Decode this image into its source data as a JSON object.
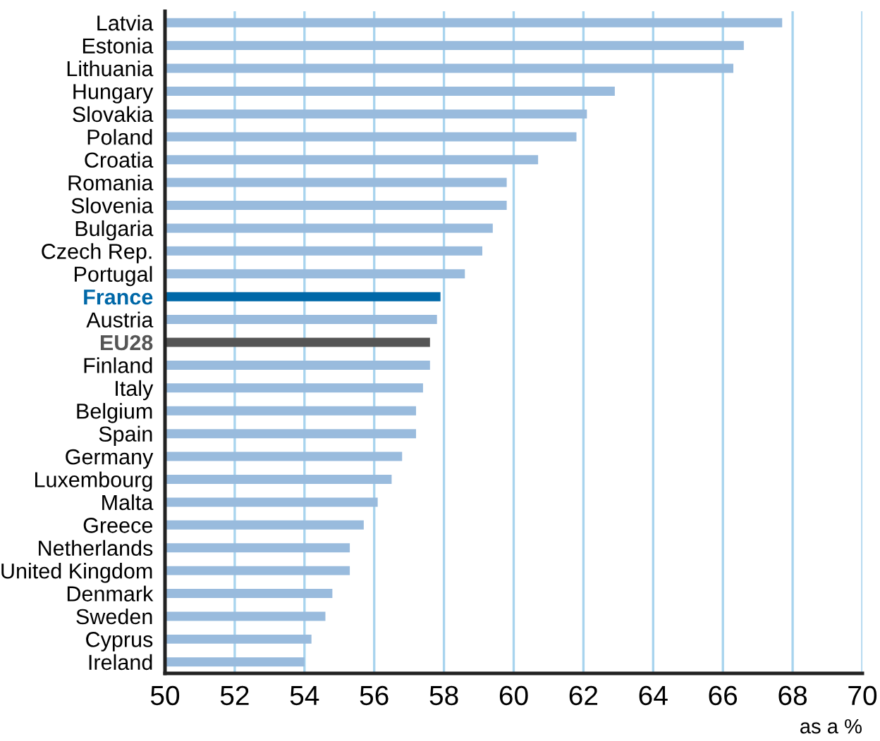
{
  "chart_data": {
    "type": "bar",
    "orientation": "horizontal",
    "xlabel": "as a %",
    "categories": [
      "Latvia",
      "Estonia",
      "Lithuania",
      "Hungary",
      "Slovakia",
      "Poland",
      "Croatia",
      "Romania",
      "Slovenia",
      "Bulgaria",
      "Czech Rep.",
      "Portugal",
      "France",
      "Austria",
      "EU28",
      "Finland",
      "Italy",
      "Belgium",
      "Spain",
      "Germany",
      "Luxembourg",
      "Malta",
      "Greece",
      "Netherlands",
      "United Kingdom",
      "Denmark",
      "Sweden",
      "Cyprus",
      "Ireland"
    ],
    "values": [
      67.7,
      66.6,
      66.3,
      62.9,
      62.1,
      61.8,
      60.7,
      59.8,
      59.8,
      59.4,
      59.1,
      58.6,
      57.9,
      57.8,
      57.6,
      57.6,
      57.4,
      57.2,
      57.2,
      56.8,
      56.5,
      56.1,
      55.7,
      55.3,
      55.3,
      54.8,
      54.6,
      54.2,
      54.0
    ],
    "colors": [
      "#99bbdd",
      "#99bbdd",
      "#99bbdd",
      "#99bbdd",
      "#99bbdd",
      "#99bbdd",
      "#99bbdd",
      "#99bbdd",
      "#99bbdd",
      "#99bbdd",
      "#99bbdd",
      "#99bbdd",
      "#0068a8",
      "#99bbdd",
      "#555555",
      "#99bbdd",
      "#99bbdd",
      "#99bbdd",
      "#99bbdd",
      "#99bbdd",
      "#99bbdd",
      "#99bbdd",
      "#99bbdd",
      "#99bbdd",
      "#99bbdd",
      "#99bbdd",
      "#99bbdd",
      "#99bbdd",
      "#99bbdd"
    ],
    "xlim": [
      50,
      70
    ],
    "xticks": [
      50,
      52,
      54,
      56,
      58,
      60,
      62,
      64,
      66,
      68,
      70
    ],
    "grid": "x"
  }
}
